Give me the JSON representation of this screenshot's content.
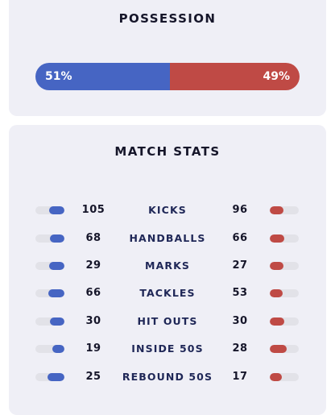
{
  "possession": {
    "title": "POSSESSION",
    "home_label": "51%",
    "away_label": "49%",
    "home_value": 51,
    "away_value": 49,
    "home_color": "#4665c3",
    "away_color": "#bf4a45"
  },
  "match_stats": {
    "title": "MATCH STATS",
    "rows": [
      {
        "label": "KICKS",
        "home": "105",
        "away": "96"
      },
      {
        "label": "HANDBALLS",
        "home": "68",
        "away": "66"
      },
      {
        "label": "MARKS",
        "home": "29",
        "away": "27"
      },
      {
        "label": "TACKLES",
        "home": "66",
        "away": "53"
      },
      {
        "label": "HIT OUTS",
        "home": "30",
        "away": "30"
      },
      {
        "label": "INSIDE 50S",
        "home": "19",
        "away": "28"
      },
      {
        "label": "REBOUND 50S",
        "home": "25",
        "away": "17"
      }
    ]
  }
}
